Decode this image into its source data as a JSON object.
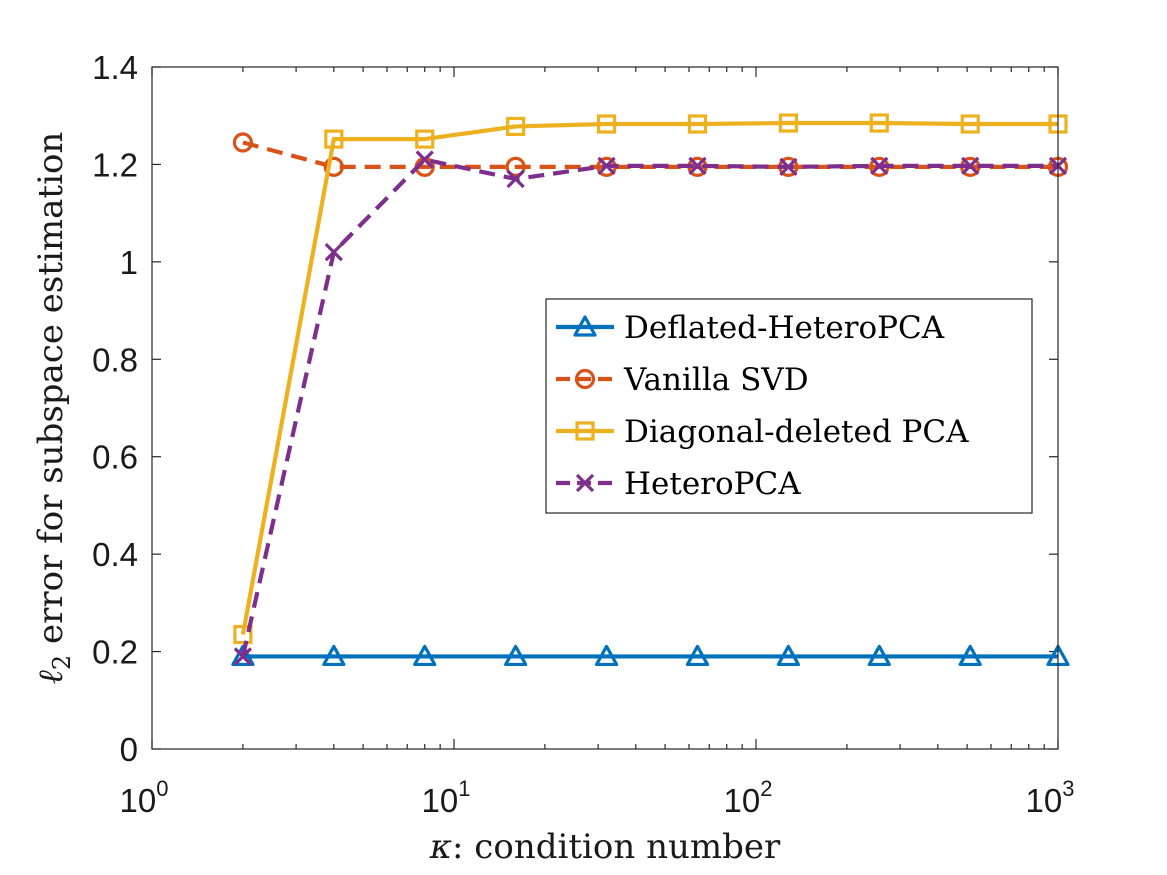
{
  "chart_data": {
    "type": "line",
    "xscale": "log",
    "xlim": [
      1,
      1000
    ],
    "ylim": [
      0,
      1.4
    ],
    "xlabel_symbol": "κ",
    "xlabel_text": ": condition number",
    "ylabel_symbol": "ℓ",
    "ylabel_subscript": "2",
    "ylabel_text": " error for subspace estimation",
    "x_ticks": [
      {
        "value": 1,
        "base": "10",
        "exp": "0"
      },
      {
        "value": 10,
        "base": "10",
        "exp": "1"
      },
      {
        "value": 100,
        "base": "10",
        "exp": "2"
      },
      {
        "value": 1000,
        "base": "10",
        "exp": "3"
      }
    ],
    "y_ticks": [
      {
        "value": 0,
        "label": "0"
      },
      {
        "value": 0.2,
        "label": "0.2"
      },
      {
        "value": 0.4,
        "label": "0.4"
      },
      {
        "value": 0.6,
        "label": "0.6"
      },
      {
        "value": 0.8,
        "label": "0.8"
      },
      {
        "value": 1.0,
        "label": "1"
      },
      {
        "value": 1.2,
        "label": "1.2"
      },
      {
        "value": 1.4,
        "label": "1.4"
      }
    ],
    "x": [
      2,
      4,
      8,
      16,
      32,
      64,
      128,
      256,
      512,
      1000
    ],
    "series": [
      {
        "name": "Deflated-HeteroPCA",
        "color": "#0072BD",
        "dash": "solid",
        "marker": "triangle",
        "values": [
          0.19,
          0.19,
          0.19,
          0.19,
          0.19,
          0.19,
          0.19,
          0.19,
          0.19,
          0.19
        ]
      },
      {
        "name": "Vanilla SVD",
        "color": "#D95319",
        "dash": "dashed",
        "marker": "circle",
        "values": [
          1.245,
          1.195,
          1.195,
          1.195,
          1.195,
          1.195,
          1.195,
          1.195,
          1.195,
          1.195
        ]
      },
      {
        "name": "Diagonal-deleted PCA",
        "color": "#EDB120",
        "dash": "solid",
        "marker": "square",
        "values": [
          0.235,
          1.252,
          1.252,
          1.278,
          1.283,
          1.283,
          1.285,
          1.285,
          1.283,
          1.283
        ]
      },
      {
        "name": "HeteroPCA",
        "color": "#7E2F8E",
        "dash": "dashed",
        "marker": "x",
        "values": [
          0.19,
          1.02,
          1.21,
          1.17,
          1.197,
          1.197,
          1.195,
          1.197,
          1.197,
          1.197
        ]
      }
    ],
    "legend_position": "center-right"
  }
}
